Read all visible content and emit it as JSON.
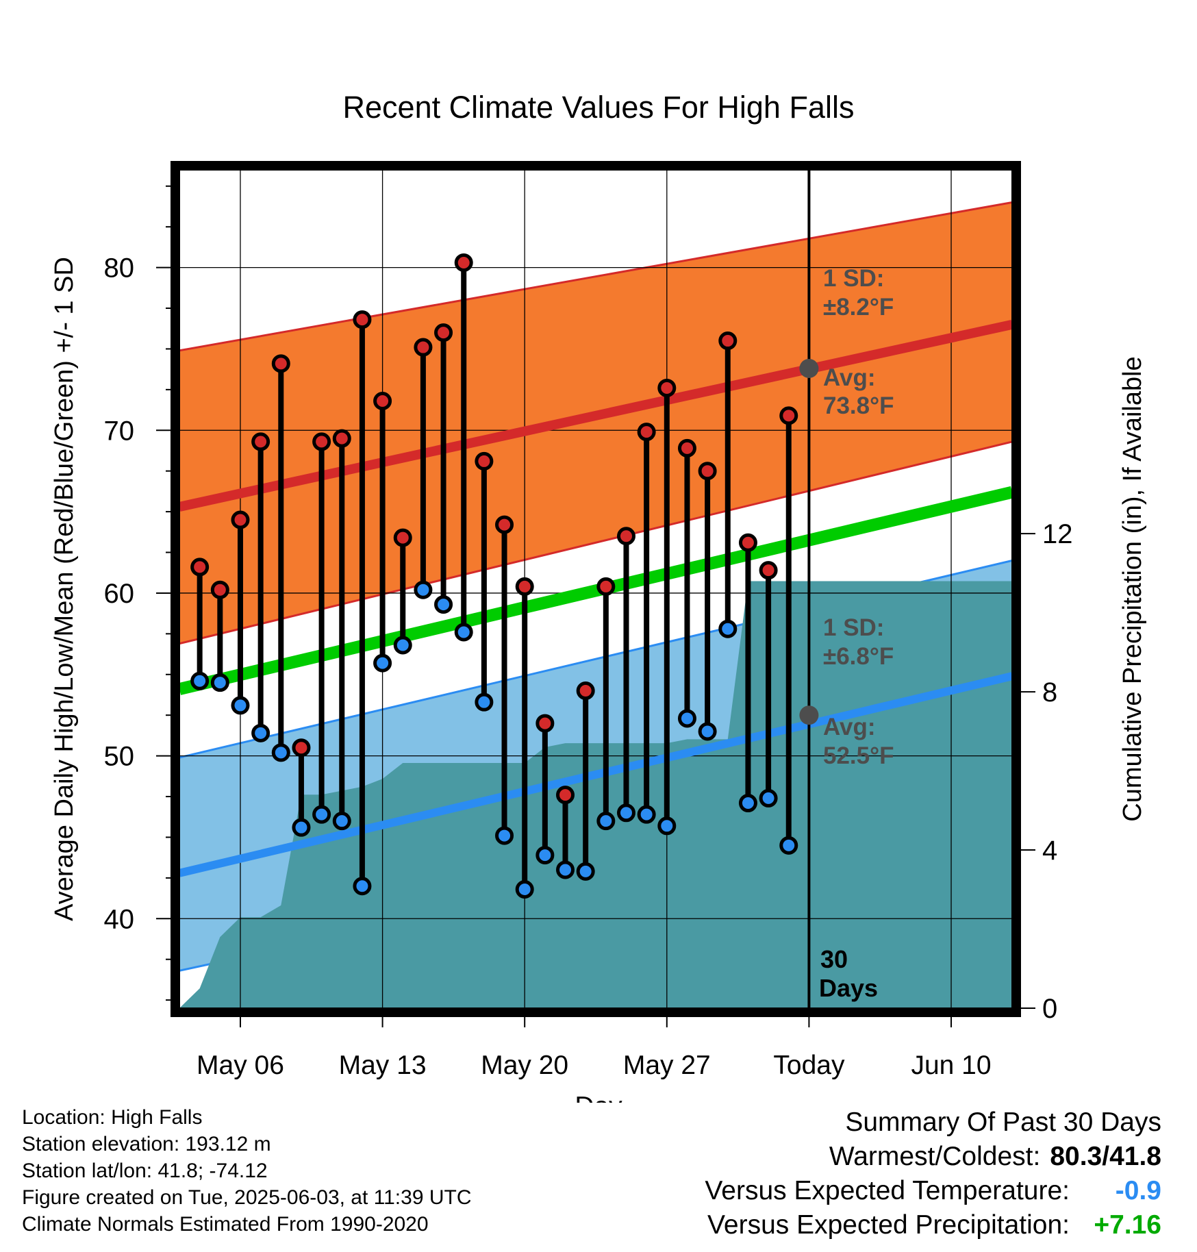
{
  "chart_data": {
    "type": "line",
    "title": "Recent Climate Values For High Falls",
    "xlabel": "Day",
    "ylabel": "Average Daily High/Low/Mean (Red/Blue/Green) +/- 1 SD",
    "y2label": "Cumulative Precipitation (in), If Available",
    "ylim": [
      34.5,
      86
    ],
    "y_ticks": [
      40,
      50,
      60,
      70,
      80
    ],
    "y2lim": [
      0,
      21.2
    ],
    "y2_ticks": [
      0,
      4,
      8,
      12
    ],
    "x_range": [
      "2025-05-03",
      "2025-06-13"
    ],
    "x_ticks": [
      {
        "date": "2025-05-06",
        "label": "May 06"
      },
      {
        "date": "2025-05-13",
        "label": "May 13"
      },
      {
        "date": "2025-05-20",
        "label": "May 20"
      },
      {
        "date": "2025-05-27",
        "label": "May 27"
      },
      {
        "date": "2025-06-03",
        "label": "Today"
      },
      {
        "date": "2025-06-10",
        "label": "Jun 10"
      }
    ],
    "today": "2025-06-03",
    "grid": true,
    "normals": {
      "high_mean": {
        "start": 65.3,
        "end": 76.5
      },
      "high_sd_upper": {
        "start": 74.9,
        "end": 84.0
      },
      "high_sd_lower": {
        "start": 56.9,
        "end": 69.3
      },
      "mean": {
        "start": 54.1,
        "end": 66.2
      },
      "low_mean": {
        "start": 42.8,
        "end": 54.9
      },
      "low_sd_upper": {
        "start": 49.9,
        "end": 62.0
      },
      "low_sd_lower": {
        "start": 36.8,
        "end": 47.9
      }
    },
    "colors": {
      "high_band": "#f47a2e",
      "high_line": "#d42a2a",
      "low_band": "#82c1e6",
      "low_line": "#2b8cf2",
      "mean_line": "#00cc00",
      "precip": "#4a9aa3",
      "high_dot": "#d42a2a",
      "low_dot": "#2b8cf2",
      "avg_marker": "#4d4d4d"
    },
    "series": [
      {
        "name": "High",
        "x": [
          "2025-05-04",
          "2025-05-05",
          "2025-05-06",
          "2025-05-07",
          "2025-05-08",
          "2025-05-09",
          "2025-05-10",
          "2025-05-11",
          "2025-05-12",
          "2025-05-13",
          "2025-05-14",
          "2025-05-15",
          "2025-05-16",
          "2025-05-17",
          "2025-05-18",
          "2025-05-19",
          "2025-05-20",
          "2025-05-21",
          "2025-05-22",
          "2025-05-23",
          "2025-05-24",
          "2025-05-25",
          "2025-05-26",
          "2025-05-27",
          "2025-05-28",
          "2025-05-29",
          "2025-05-30",
          "2025-05-31",
          "2025-06-01",
          "2025-06-02"
        ],
        "values": [
          61.6,
          60.2,
          64.5,
          69.3,
          74.1,
          50.5,
          69.3,
          69.5,
          76.8,
          71.8,
          63.4,
          75.1,
          76.0,
          80.3,
          68.1,
          64.2,
          60.4,
          52.0,
          47.6,
          54.0,
          60.4,
          63.5,
          69.9,
          72.6,
          68.9,
          67.5,
          75.5,
          63.1,
          61.4,
          70.9
        ]
      },
      {
        "name": "Low",
        "x": [
          "2025-05-04",
          "2025-05-05",
          "2025-05-06",
          "2025-05-07",
          "2025-05-08",
          "2025-05-09",
          "2025-05-10",
          "2025-05-11",
          "2025-05-12",
          "2025-05-13",
          "2025-05-14",
          "2025-05-15",
          "2025-05-16",
          "2025-05-17",
          "2025-05-18",
          "2025-05-19",
          "2025-05-20",
          "2025-05-21",
          "2025-05-22",
          "2025-05-23",
          "2025-05-24",
          "2025-05-25",
          "2025-05-26",
          "2025-05-27",
          "2025-05-28",
          "2025-05-29",
          "2025-05-30",
          "2025-05-31",
          "2025-06-01",
          "2025-06-02"
        ],
        "values": [
          54.6,
          54.5,
          53.1,
          51.4,
          50.2,
          45.6,
          46.4,
          46.0,
          42.0,
          55.7,
          56.8,
          60.2,
          59.3,
          57.6,
          53.3,
          45.1,
          41.8,
          43.9,
          43.0,
          42.9,
          46.0,
          46.5,
          46.4,
          45.7,
          52.3,
          51.5,
          57.8,
          47.1,
          47.4,
          44.5
        ]
      },
      {
        "name": "Cumulative Precipitation",
        "x": [
          "2025-05-03",
          "2025-05-04",
          "2025-05-05",
          "2025-05-06",
          "2025-05-07",
          "2025-05-08",
          "2025-05-09",
          "2025-05-10",
          "2025-05-11",
          "2025-05-12",
          "2025-05-13",
          "2025-05-14",
          "2025-05-15",
          "2025-05-16",
          "2025-05-17",
          "2025-05-18",
          "2025-05-19",
          "2025-05-20",
          "2025-05-21",
          "2025-05-22",
          "2025-05-23",
          "2025-05-24",
          "2025-05-25",
          "2025-05-26",
          "2025-05-27",
          "2025-05-28",
          "2025-05-29",
          "2025-05-30",
          "2025-05-31",
          "2025-06-13"
        ],
        "values": [
          0.0,
          0.5,
          1.8,
          2.3,
          2.3,
          2.6,
          5.4,
          5.4,
          5.5,
          5.6,
          5.8,
          6.2,
          6.2,
          6.2,
          6.2,
          6.2,
          6.2,
          6.2,
          6.6,
          6.7,
          6.7,
          6.7,
          6.7,
          6.7,
          6.7,
          6.8,
          6.8,
          6.8,
          10.8,
          10.8
        ]
      }
    ],
    "annotations": {
      "high_sd_title": "1 SD:",
      "high_sd_value": "±8.2°F",
      "high_avg_title": "Avg:",
      "high_avg_value": "73.8°F",
      "high_avg": 73.8,
      "low_sd_title": "1 SD:",
      "low_sd_value": "±6.8°F",
      "low_avg_title": "Avg:",
      "low_avg_value": "52.5°F",
      "low_avg": 52.5,
      "days_number": "30",
      "days_label": "Days"
    }
  },
  "footer": {
    "location": "Location: High Falls",
    "elevation": "Station elevation: 193.12 m",
    "latlon": "Station lat/lon: 41.8; -74.12",
    "created": "Figure created on Tue, 2025-06-03, at 11:39 UTC",
    "normals": "Climate Normals Estimated From 1990-2020"
  },
  "summary": {
    "title": "Summary Of Past 30 Days",
    "warmest_label": "Warmest/Coldest:",
    "warmest_value": "80.3/41.8",
    "temp_label": "Versus Expected Temperature:",
    "temp_value": "-0.9",
    "temp_color": "#2b8cf2",
    "precip_label": "Versus Expected Precipitation:",
    "precip_value": "+7.16",
    "precip_color": "#00aa00"
  }
}
